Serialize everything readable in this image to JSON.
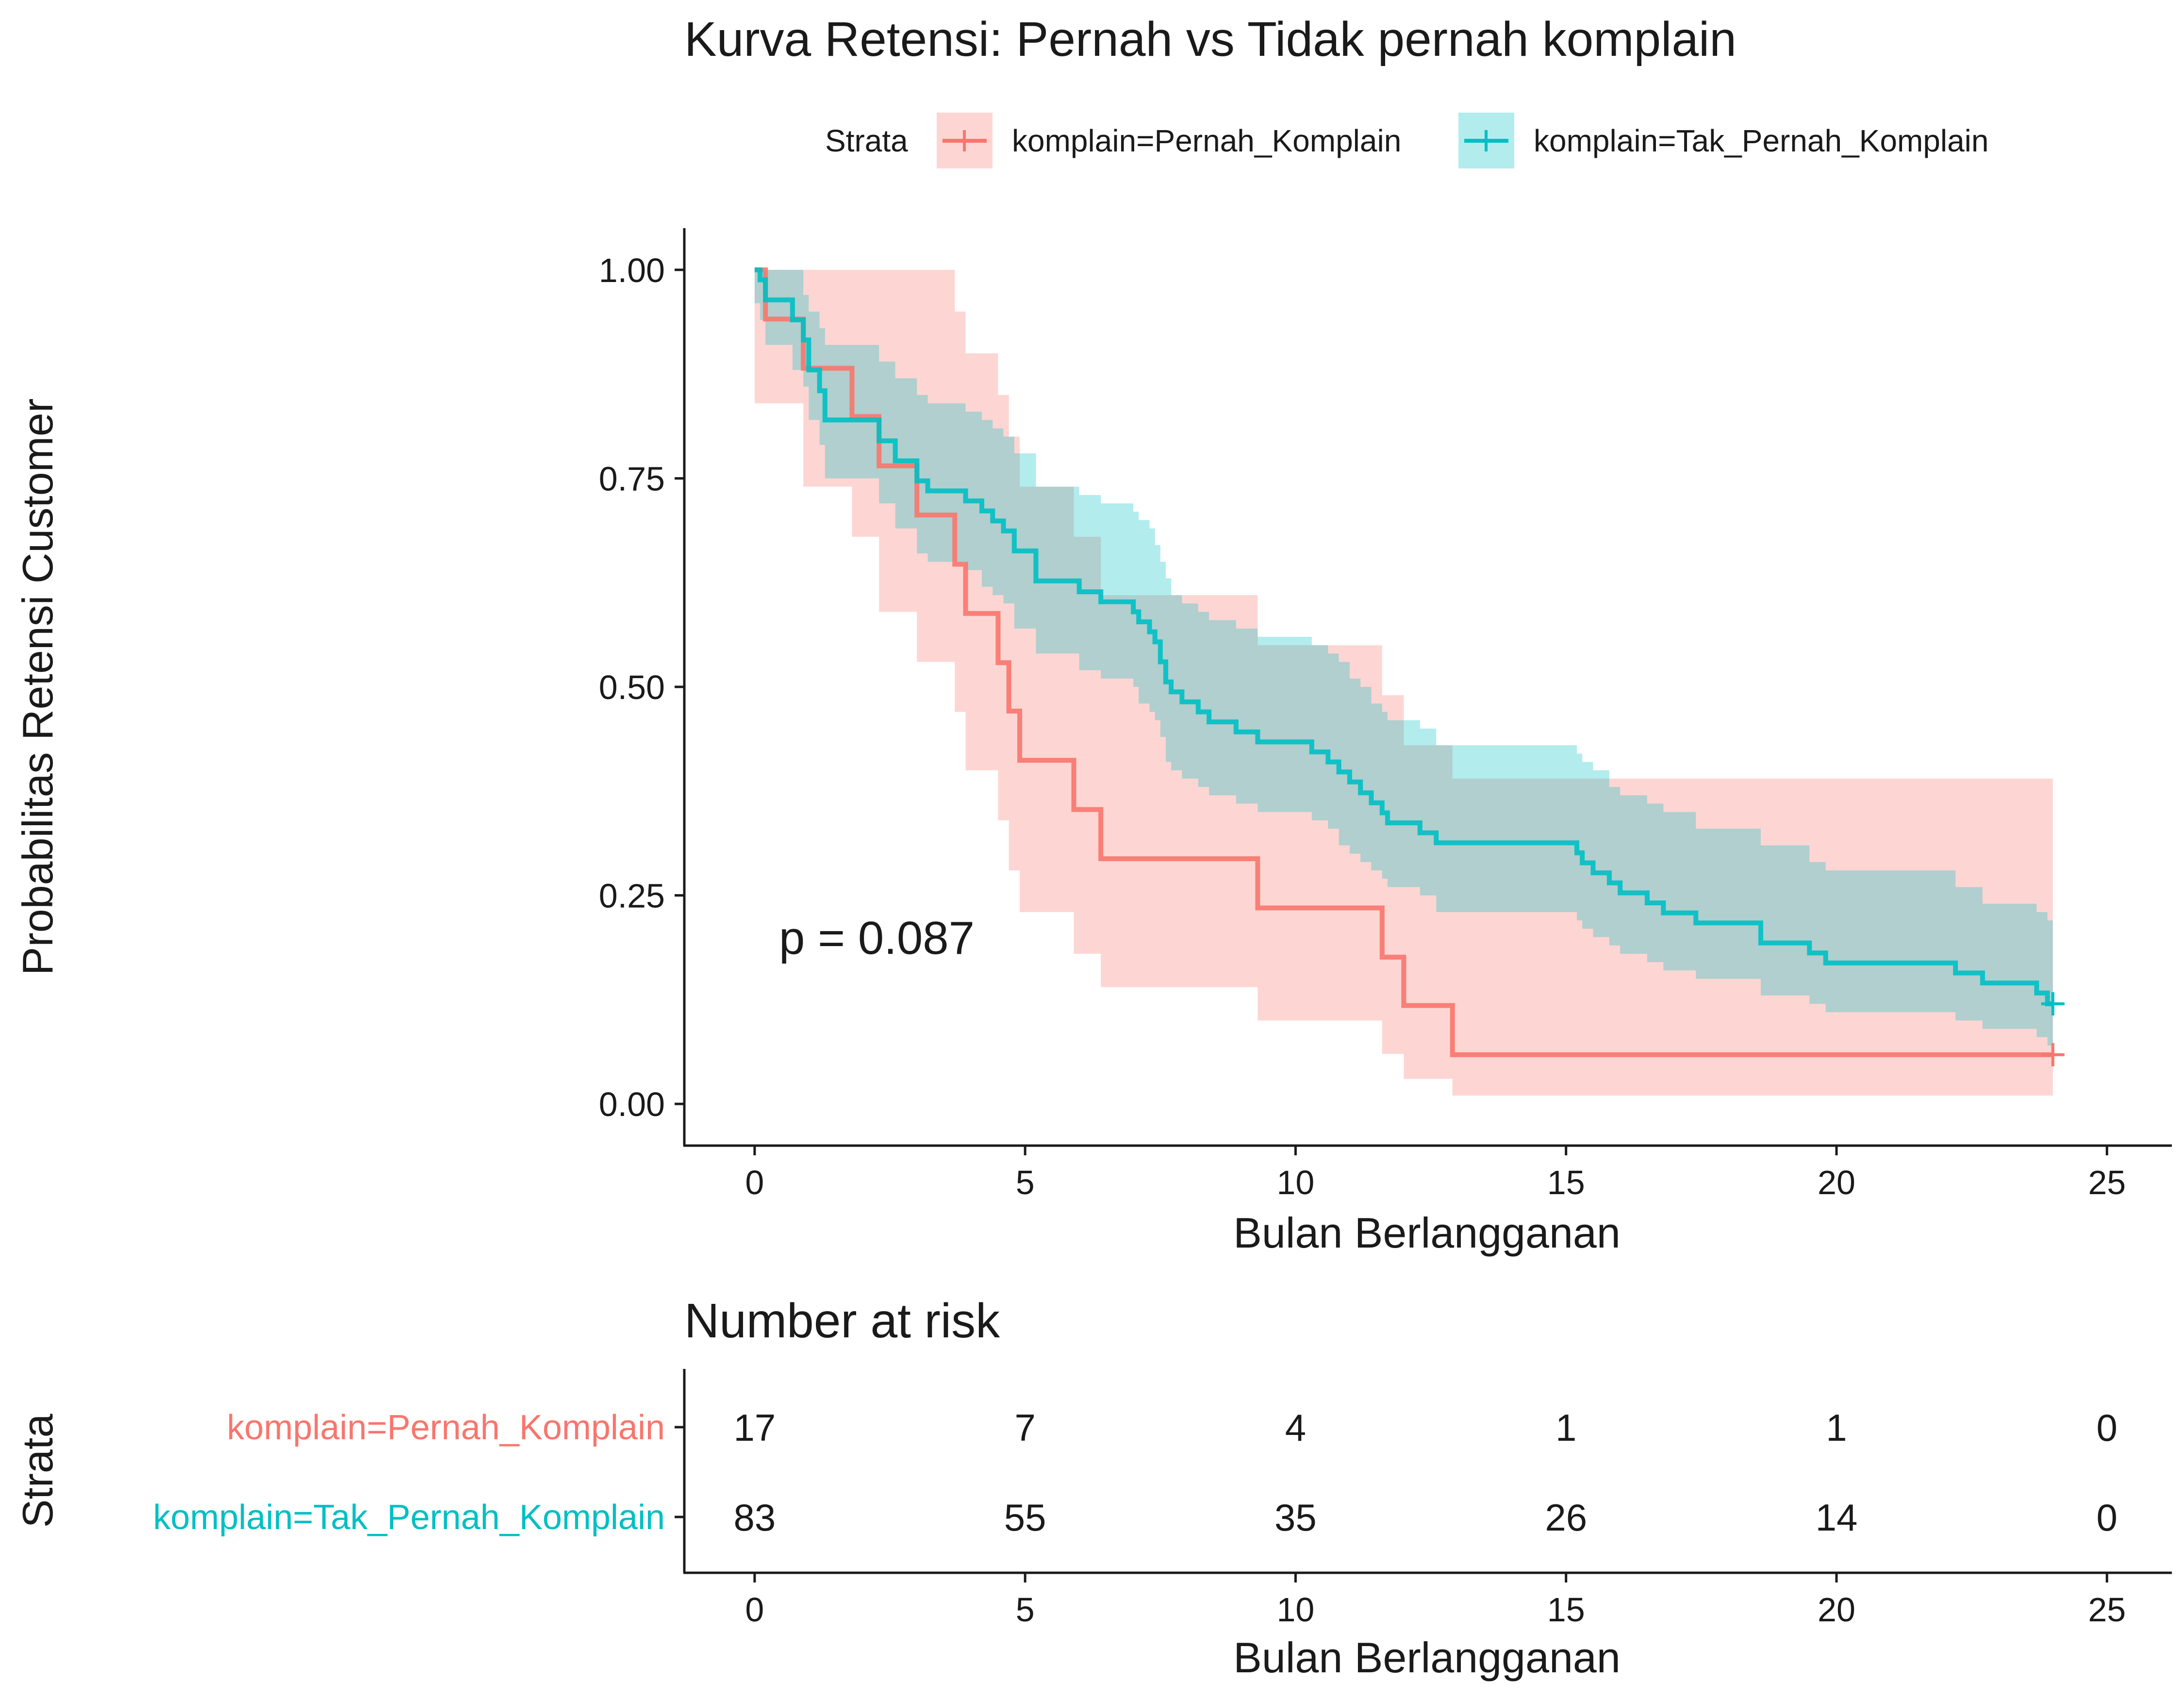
{
  "chart_data": [
    {
      "type": "line",
      "subtype": "kaplan-meier",
      "title": "Kurva Retensi: Pernah vs Tidak pernah komplain",
      "legend_title": "Strata",
      "legend_position": "top",
      "xlabel": "Bulan Berlangganan",
      "ylabel": "Probabilitas Retensi Customer",
      "xlim": [
        -1.3,
        26.2
      ],
      "ylim": [
        -0.05,
        1.05
      ],
      "x_ticks": [
        0,
        5,
        10,
        15,
        20,
        25
      ],
      "x_tick_labels": [
        "0",
        "5",
        "10",
        "15",
        "20",
        "25"
      ],
      "y_ticks": [
        0,
        0.25,
        0.5,
        0.75,
        1
      ],
      "y_tick_labels": [
        "0.00",
        "0.25",
        "0.50",
        "0.75",
        "1.00"
      ],
      "grid": false,
      "annotation": "p = 0.087",
      "annotation_at": [
        0.45,
        0.18
      ],
      "series": [
        {
          "name": "komplain=Pernah_Komplain",
          "color": "#F8766D",
          "fill_color": "#F8766D",
          "censor_at": 24,
          "steps": [
            {
              "t": 0,
              "s": 1.0,
              "lo": 0.84,
              "hi": 1.0
            },
            {
              "t": 0.2,
              "s": 0.941,
              "lo": 0.84,
              "hi": 1.0
            },
            {
              "t": 0.9,
              "s": 0.882,
              "lo": 0.74,
              "hi": 1.0
            },
            {
              "t": 1.8,
              "s": 0.824,
              "lo": 0.68,
              "hi": 1.0
            },
            {
              "t": 2.3,
              "s": 0.765,
              "lo": 0.59,
              "hi": 1.0
            },
            {
              "t": 3.0,
              "s": 0.706,
              "lo": 0.53,
              "hi": 1.0
            },
            {
              "t": 3.7,
              "s": 0.647,
              "lo": 0.47,
              "hi": 0.95
            },
            {
              "t": 3.9,
              "s": 0.588,
              "lo": 0.4,
              "hi": 0.9
            },
            {
              "t": 4.5,
              "s": 0.529,
              "lo": 0.34,
              "hi": 0.85
            },
            {
              "t": 4.7,
              "s": 0.471,
              "lo": 0.28,
              "hi": 0.8
            },
            {
              "t": 4.9,
              "s": 0.412,
              "lo": 0.23,
              "hi": 0.74
            },
            {
              "t": 5.9,
              "s": 0.353,
              "lo": 0.18,
              "hi": 0.68
            },
            {
              "t": 6.4,
              "s": 0.294,
              "lo": 0.14,
              "hi": 0.61
            },
            {
              "t": 9.3,
              "s": 0.235,
              "lo": 0.1,
              "hi": 0.55
            },
            {
              "t": 11.6,
              "s": 0.176,
              "lo": 0.06,
              "hi": 0.49
            },
            {
              "t": 12.0,
              "s": 0.118,
              "lo": 0.03,
              "hi": 0.43
            },
            {
              "t": 12.9,
              "s": 0.059,
              "lo": 0.01,
              "hi": 0.39
            },
            {
              "t": 24,
              "s": 0.059,
              "lo": 0.01,
              "hi": 0.39
            }
          ]
        },
        {
          "name": "komplain=Tak_Pernah_Komplain",
          "color": "#00BFC4",
          "fill_color": "#00BFC4",
          "censor_at": 24,
          "steps": [
            {
              "t": 0,
              "s": 1.0,
              "lo": 0.96,
              "hi": 1.0
            },
            {
              "t": 0.1,
              "s": 0.988,
              "lo": 0.94,
              "hi": 1.0
            },
            {
              "t": 0.2,
              "s": 0.964,
              "lo": 0.91,
              "hi": 1.0
            },
            {
              "t": 0.7,
              "s": 0.94,
              "lo": 0.88,
              "hi": 1.0
            },
            {
              "t": 0.9,
              "s": 0.916,
              "lo": 0.86,
              "hi": 0.97
            },
            {
              "t": 1.0,
              "s": 0.88,
              "lo": 0.82,
              "hi": 0.95
            },
            {
              "t": 1.2,
              "s": 0.855,
              "lo": 0.79,
              "hi": 0.93
            },
            {
              "t": 1.3,
              "s": 0.82,
              "lo": 0.75,
              "hi": 0.91
            },
            {
              "t": 2.3,
              "s": 0.795,
              "lo": 0.72,
              "hi": 0.89
            },
            {
              "t": 2.6,
              "s": 0.771,
              "lo": 0.69,
              "hi": 0.87
            },
            {
              "t": 3.0,
              "s": 0.747,
              "lo": 0.66,
              "hi": 0.85
            },
            {
              "t": 3.2,
              "s": 0.735,
              "lo": 0.65,
              "hi": 0.84
            },
            {
              "t": 3.9,
              "s": 0.723,
              "lo": 0.64,
              "hi": 0.83
            },
            {
              "t": 4.2,
              "s": 0.711,
              "lo": 0.62,
              "hi": 0.82
            },
            {
              "t": 4.4,
              "s": 0.699,
              "lo": 0.61,
              "hi": 0.81
            },
            {
              "t": 4.6,
              "s": 0.687,
              "lo": 0.6,
              "hi": 0.8
            },
            {
              "t": 4.8,
              "s": 0.663,
              "lo": 0.57,
              "hi": 0.78
            },
            {
              "t": 5.2,
              "s": 0.627,
              "lo": 0.54,
              "hi": 0.74
            },
            {
              "t": 6.0,
              "s": 0.614,
              "lo": 0.52,
              "hi": 0.73
            },
            {
              "t": 6.4,
              "s": 0.602,
              "lo": 0.51,
              "hi": 0.72
            },
            {
              "t": 7.0,
              "s": 0.59,
              "lo": 0.5,
              "hi": 0.71
            },
            {
              "t": 7.1,
              "s": 0.578,
              "lo": 0.48,
              "hi": 0.7
            },
            {
              "t": 7.3,
              "s": 0.566,
              "lo": 0.47,
              "hi": 0.69
            },
            {
              "t": 7.4,
              "s": 0.554,
              "lo": 0.46,
              "hi": 0.67
            },
            {
              "t": 7.5,
              "s": 0.53,
              "lo": 0.44,
              "hi": 0.65
            },
            {
              "t": 7.6,
              "s": 0.506,
              "lo": 0.41,
              "hi": 0.63
            },
            {
              "t": 7.7,
              "s": 0.494,
              "lo": 0.4,
              "hi": 0.61
            },
            {
              "t": 7.9,
              "s": 0.482,
              "lo": 0.39,
              "hi": 0.6
            },
            {
              "t": 8.2,
              "s": 0.47,
              "lo": 0.38,
              "hi": 0.59
            },
            {
              "t": 8.4,
              "s": 0.458,
              "lo": 0.37,
              "hi": 0.58
            },
            {
              "t": 8.9,
              "s": 0.446,
              "lo": 0.36,
              "hi": 0.57
            },
            {
              "t": 9.3,
              "s": 0.434,
              "lo": 0.35,
              "hi": 0.56
            },
            {
              "t": 10.3,
              "s": 0.422,
              "lo": 0.34,
              "hi": 0.55
            },
            {
              "t": 10.6,
              "s": 0.41,
              "lo": 0.33,
              "hi": 0.54
            },
            {
              "t": 10.8,
              "s": 0.398,
              "lo": 0.31,
              "hi": 0.53
            },
            {
              "t": 11.0,
              "s": 0.386,
              "lo": 0.3,
              "hi": 0.51
            },
            {
              "t": 11.2,
              "s": 0.373,
              "lo": 0.29,
              "hi": 0.5
            },
            {
              "t": 11.4,
              "s": 0.361,
              "lo": 0.28,
              "hi": 0.48
            },
            {
              "t": 11.6,
              "s": 0.349,
              "lo": 0.27,
              "hi": 0.47
            },
            {
              "t": 11.7,
              "s": 0.337,
              "lo": 0.26,
              "hi": 0.46
            },
            {
              "t": 12.3,
              "s": 0.325,
              "lo": 0.25,
              "hi": 0.45
            },
            {
              "t": 12.6,
              "s": 0.313,
              "lo": 0.23,
              "hi": 0.43
            },
            {
              "t": 15.2,
              "s": 0.301,
              "lo": 0.22,
              "hi": 0.42
            },
            {
              "t": 15.3,
              "s": 0.289,
              "lo": 0.21,
              "hi": 0.41
            },
            {
              "t": 15.5,
              "s": 0.277,
              "lo": 0.2,
              "hi": 0.4
            },
            {
              "t": 15.8,
              "s": 0.265,
              "lo": 0.19,
              "hi": 0.38
            },
            {
              "t": 16.0,
              "s": 0.253,
              "lo": 0.18,
              "hi": 0.37
            },
            {
              "t": 16.5,
              "s": 0.241,
              "lo": 0.17,
              "hi": 0.36
            },
            {
              "t": 16.8,
              "s": 0.229,
              "lo": 0.16,
              "hi": 0.35
            },
            {
              "t": 17.4,
              "s": 0.217,
              "lo": 0.15,
              "hi": 0.33
            },
            {
              "t": 18.6,
              "s": 0.193,
              "lo": 0.13,
              "hi": 0.31
            },
            {
              "t": 19.5,
              "s": 0.181,
              "lo": 0.12,
              "hi": 0.29
            },
            {
              "t": 19.8,
              "s": 0.169,
              "lo": 0.11,
              "hi": 0.28
            },
            {
              "t": 22.2,
              "s": 0.157,
              "lo": 0.1,
              "hi": 0.26
            },
            {
              "t": 22.7,
              "s": 0.145,
              "lo": 0.09,
              "hi": 0.24
            },
            {
              "t": 23.7,
              "s": 0.133,
              "lo": 0.08,
              "hi": 0.23
            },
            {
              "t": 23.9,
              "s": 0.12,
              "lo": 0.07,
              "hi": 0.22
            },
            {
              "t": 24,
              "s": 0.12,
              "lo": 0.07,
              "hi": 0.22
            }
          ]
        }
      ]
    },
    {
      "type": "table",
      "title": "Number at risk",
      "xlabel": "Bulan Berlangganan",
      "ylabel": "Strata",
      "xlim": [
        -1.3,
        26.2
      ],
      "x_ticks": [
        0,
        5,
        10,
        15,
        20,
        25
      ],
      "x_tick_labels": [
        "0",
        "5",
        "10",
        "15",
        "20",
        "25"
      ],
      "rows": [
        {
          "label": "komplain=Pernah_Komplain",
          "color": "#F8766D",
          "values": [
            17,
            7,
            4,
            1,
            1,
            0
          ]
        },
        {
          "label": "komplain=Tak_Pernah_Komplain",
          "color": "#00BFC4",
          "values": [
            83,
            55,
            35,
            26,
            14,
            0
          ]
        }
      ]
    }
  ]
}
